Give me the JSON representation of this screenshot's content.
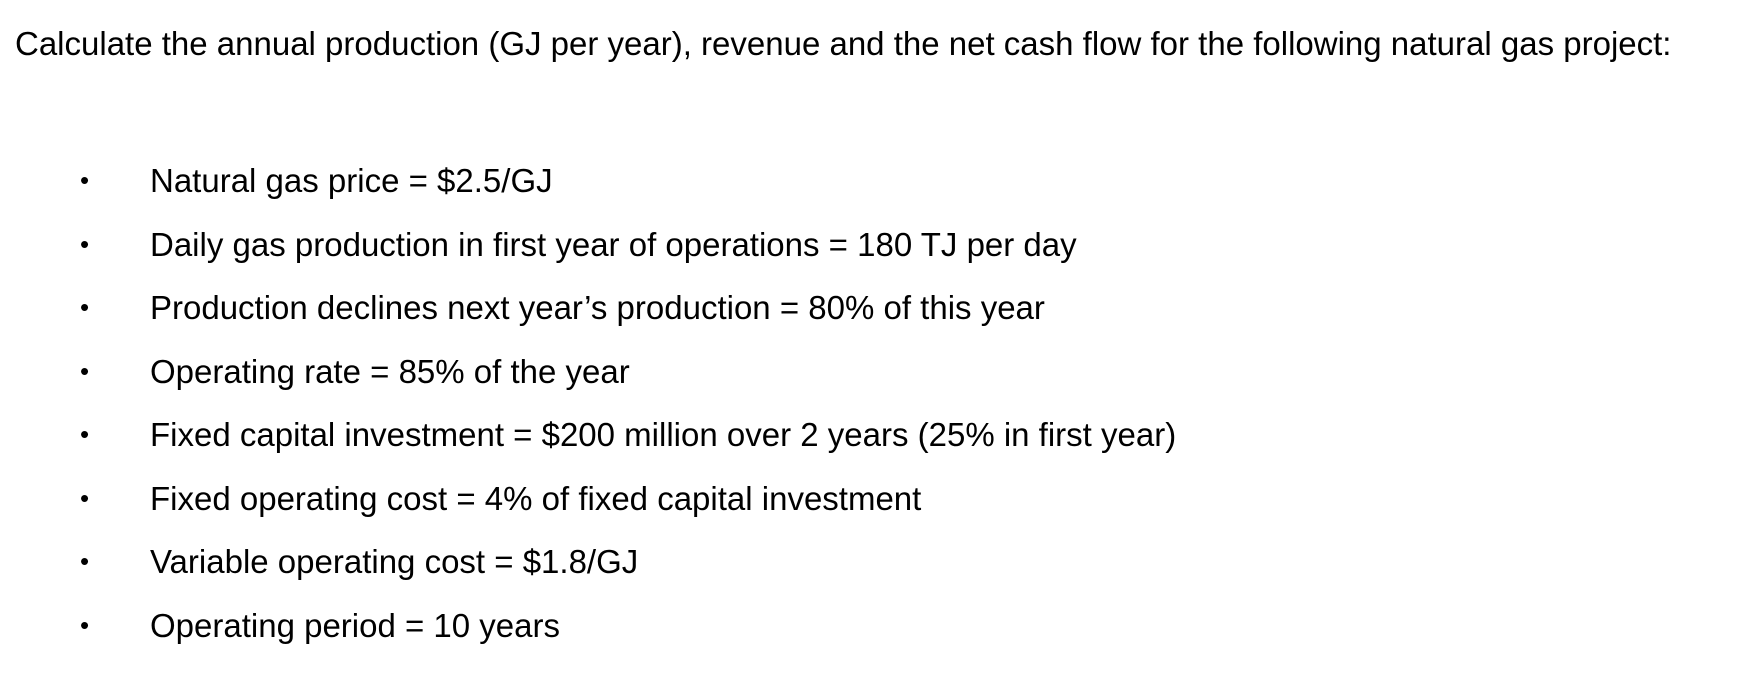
{
  "question": {
    "intro": "Calculate the annual production (GJ per year), revenue and the net cash flow for the following natural gas project:",
    "items": [
      "Natural gas price = $2.5/GJ",
      "Daily gas production in first year of operations = 180 TJ per day",
      "Production declines next year’s production = 80% of this year",
      "Operating rate = 85% of the year",
      "Fixed capital investment = $200 million over 2 years (25% in first year)",
      "Fixed operating cost = 4% of fixed capital investment",
      "Variable operating cost = $1.8/GJ",
      "Operating period = 10 years"
    ]
  }
}
